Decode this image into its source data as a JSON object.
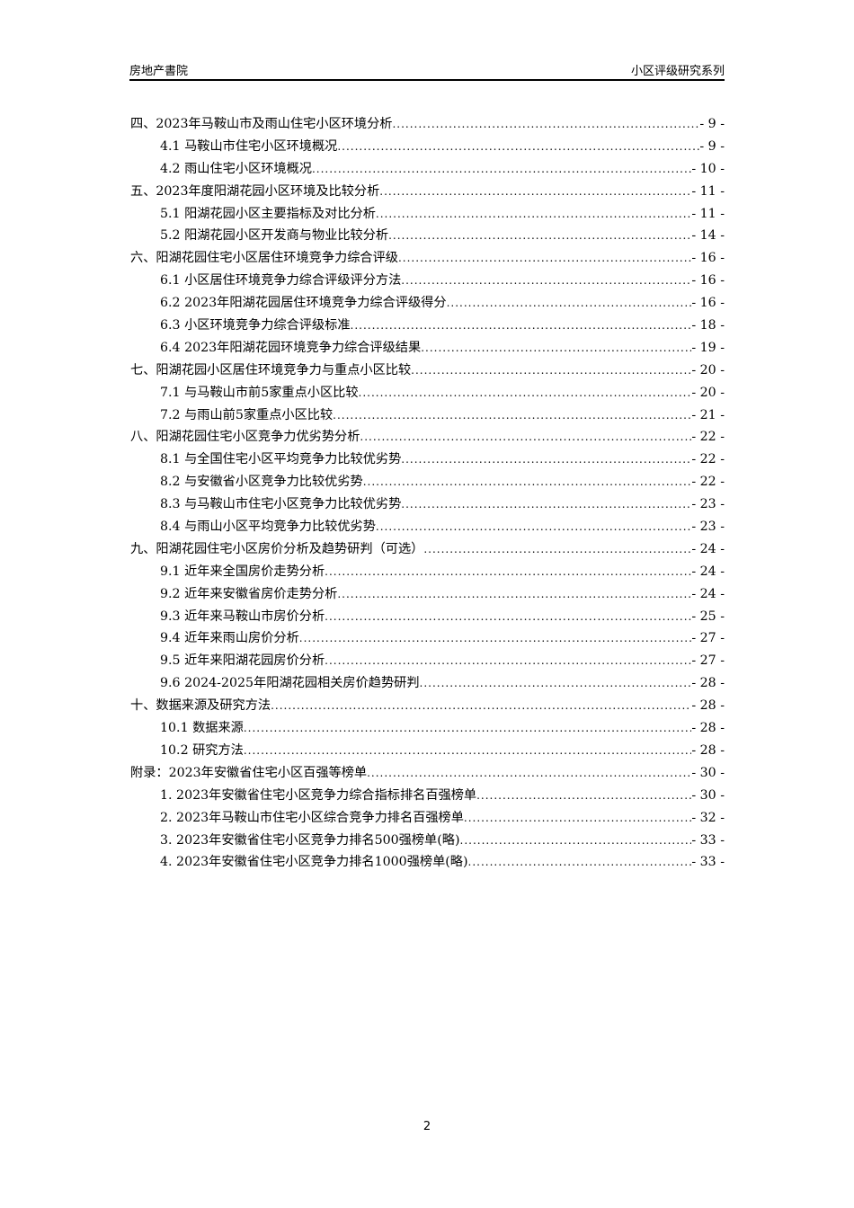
{
  "header": {
    "left": "房地产書院",
    "right": "小区评级研究系列"
  },
  "toc": [
    {
      "level": 1,
      "title": "四、2023年马鞍山市及雨山住宅小区环境分析",
      "page": "- 9 -"
    },
    {
      "level": 2,
      "title": "4.1 马鞍山市住宅小区环境概况",
      "page": "- 9 -"
    },
    {
      "level": 2,
      "title": "4.2 雨山住宅小区环境概况",
      "page": "- 10 -"
    },
    {
      "level": 1,
      "title": "五、2023年度阳湖花园小区环境及比较分析",
      "page": "- 11 -"
    },
    {
      "level": 2,
      "title": "5.1 阳湖花园小区主要指标及对比分析",
      "page": "- 11 -"
    },
    {
      "level": 2,
      "title": "5.2 阳湖花园小区开发商与物业比较分析",
      "page": "- 14 -"
    },
    {
      "level": 1,
      "title": "六、阳湖花园住宅小区居住环境竞争力综合评级",
      "page": "- 16 -"
    },
    {
      "level": 2,
      "title": "6.1 小区居住环境竞争力综合评级评分方法",
      "page": "- 16 -"
    },
    {
      "level": 2,
      "title": "6.2 2023年阳湖花园居住环境竞争力综合评级得分",
      "page": "- 16 -"
    },
    {
      "level": 2,
      "title": "6.3 小区环境竞争力综合评级标准",
      "page": "- 18 -"
    },
    {
      "level": 2,
      "title": "6.4 2023年阳湖花园环境竞争力综合评级结果",
      "page": "- 19 -"
    },
    {
      "level": 1,
      "title": "七、阳湖花园小区居住环境竞争力与重点小区比较",
      "page": "- 20 -"
    },
    {
      "level": 2,
      "title": "7.1 与马鞍山市前5家重点小区比较",
      "page": "- 20 -"
    },
    {
      "level": 2,
      "title": "7.2 与雨山前5家重点小区比较",
      "page": "- 21 -"
    },
    {
      "level": 1,
      "title": "八、阳湖花园住宅小区竞争力优劣势分析",
      "page": "- 22 -"
    },
    {
      "level": 2,
      "title": "8.1 与全国住宅小区平均竞争力比较优劣势",
      "page": "- 22 -"
    },
    {
      "level": 2,
      "title": "8.2 与安徽省小区竞争力比较优劣势",
      "page": "- 22 -"
    },
    {
      "level": 2,
      "title": "8.3 与马鞍山市住宅小区竞争力比较优劣势",
      "page": "- 23 -"
    },
    {
      "level": 2,
      "title": "8.4 与雨山小区平均竞争力比较优劣势",
      "page": "- 23 -"
    },
    {
      "level": 1,
      "title": "九、阳湖花园住宅小区房价分析及趋势研判（可选）",
      "page": "- 24 -"
    },
    {
      "level": 2,
      "title": "9.1 近年来全国房价走势分析",
      "page": "- 24 -"
    },
    {
      "level": 2,
      "title": "9.2 近年来安徽省房价走势分析",
      "page": "- 24 -"
    },
    {
      "level": 2,
      "title": "9.3 近年来马鞍山市房价分析",
      "page": "- 25 -"
    },
    {
      "level": 2,
      "title": "9.4 近年来雨山房价分析",
      "page": "- 27 -"
    },
    {
      "level": 2,
      "title": "9.5 近年来阳湖花园房价分析",
      "page": "- 27 -"
    },
    {
      "level": 2,
      "title": "9.6 2024-2025年阳湖花园相关房价趋势研判",
      "page": "- 28 -"
    },
    {
      "level": 1,
      "title": "十、数据来源及研究方法",
      "page": "- 28 -"
    },
    {
      "level": 2,
      "title": "10.1 数据来源",
      "page": "- 28 -"
    },
    {
      "level": 2,
      "title": "10.2 研究方法",
      "page": "- 28 -"
    },
    {
      "level": 1,
      "title": "附录：2023年安徽省住宅小区百强等榜单",
      "page": "- 30 -"
    },
    {
      "level": 2,
      "title": "1.  2023年安徽省住宅小区竞争力综合指标排名百强榜单",
      "page": "- 30 -"
    },
    {
      "level": 2,
      "title": "2.  2023年马鞍山市住宅小区综合竞争力排名百强榜单",
      "page": "- 32 -"
    },
    {
      "level": 2,
      "title": "3.  2023年安徽省住宅小区竞争力排名500强榜单(略)",
      "page": "- 33 -"
    },
    {
      "level": 2,
      "title": "4.  2023年安徽省住宅小区竞争力排名1000强榜单(略)",
      "page": "- 33 -"
    }
  ],
  "footer": {
    "page_number": "2"
  }
}
